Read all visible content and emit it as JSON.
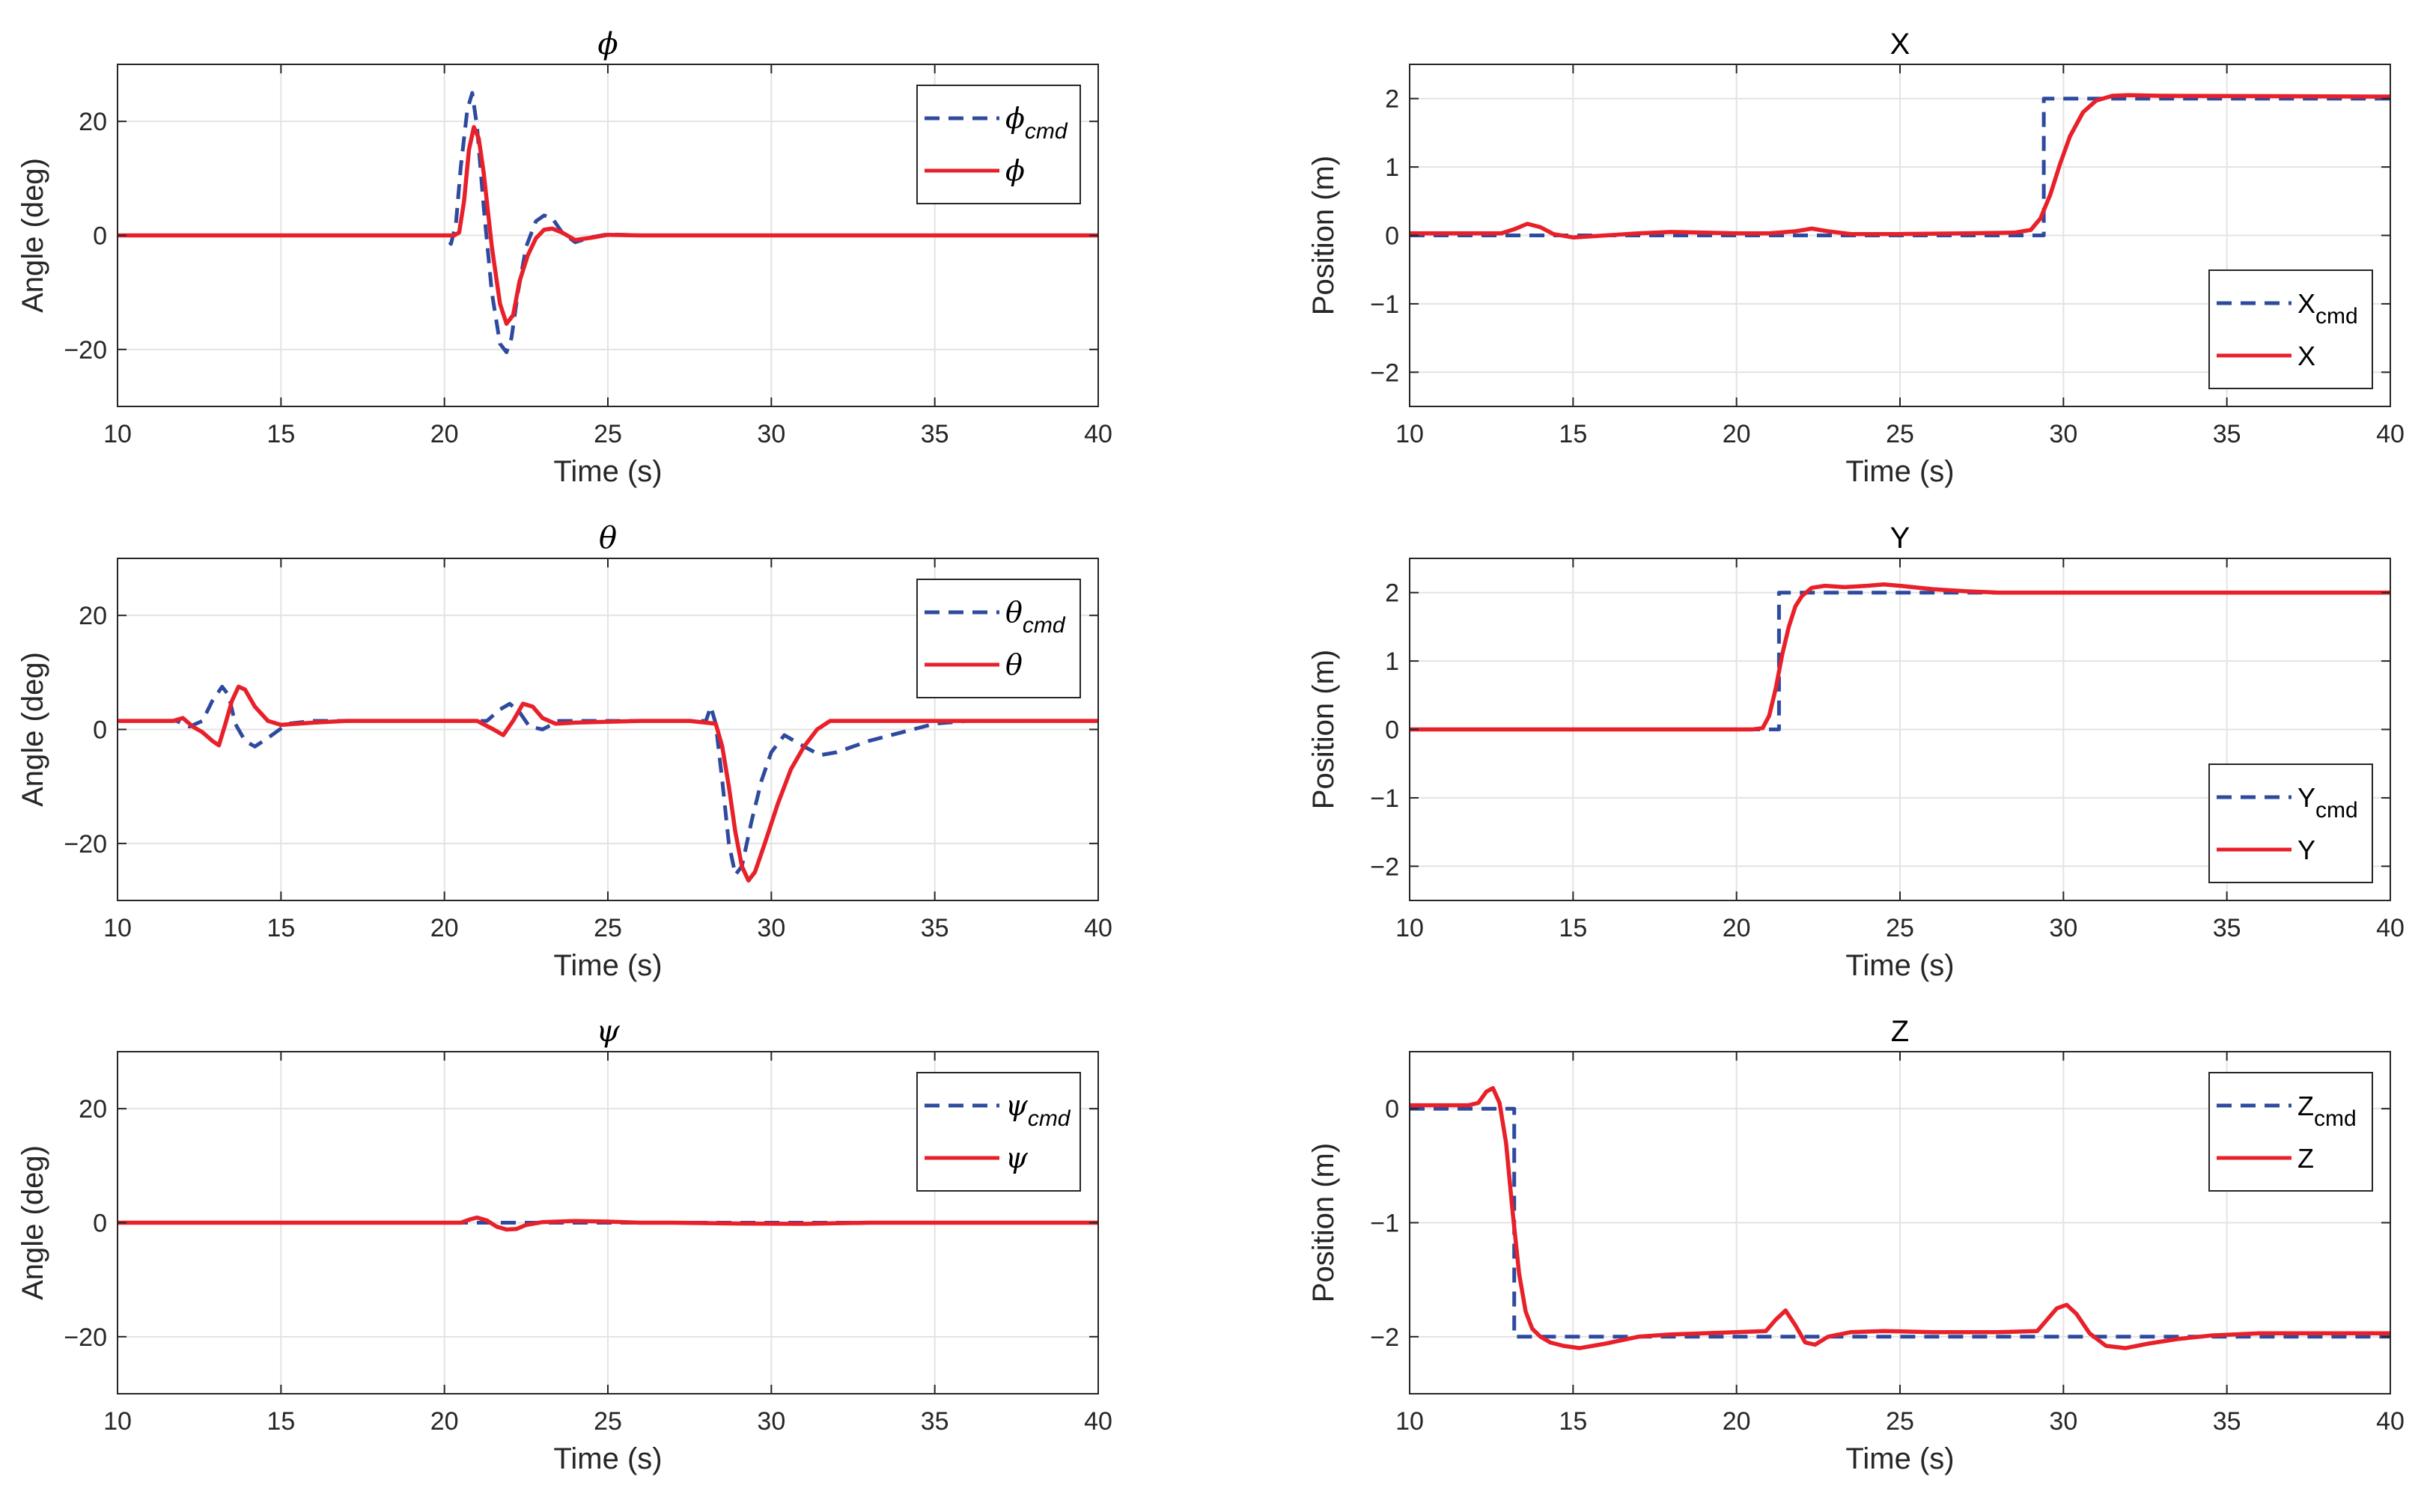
{
  "colors": {
    "cmd": "#2E4A9E",
    "actual": "#E8202A",
    "grid": "#E3E3E3",
    "axis": "#262626"
  },
  "chart_data": [
    {
      "type": "line",
      "title": "ϕ",
      "title_greek": true,
      "xlabel": "Time (s)",
      "ylabel": "Angle (deg)",
      "xlim": [
        10,
        40
      ],
      "ylim": [
        -30,
        30
      ],
      "xticks": [
        10,
        15,
        20,
        25,
        30,
        35,
        40
      ],
      "yticks": [
        -20,
        0,
        20
      ],
      "legend_location": "top-right",
      "series": [
        {
          "name": "ϕcmd",
          "base": "ϕ",
          "sub": "cmd",
          "style": "dashed",
          "x": [
            10,
            20.0,
            20.2,
            20.35,
            20.5,
            20.7,
            20.85,
            21.0,
            21.2,
            21.45,
            21.7,
            21.9,
            22.05,
            22.25,
            22.5,
            22.8,
            23.05,
            23.3,
            23.6,
            24.0,
            24.5,
            25.0,
            26.0,
            30.0,
            40
          ],
          "y": [
            0,
            0,
            -1.5,
            2,
            12,
            22,
            25,
            19,
            5,
            -10,
            -19,
            -20.5,
            -18,
            -10,
            -2,
            2.5,
            3.5,
            3,
            0.5,
            -1.2,
            -0.3,
            0.2,
            0,
            0,
            0
          ]
        },
        {
          "name": "ϕ",
          "base": "ϕ",
          "sub": "",
          "style": "solid",
          "x": [
            10,
            20.3,
            20.45,
            20.6,
            20.75,
            20.9,
            21.05,
            21.2,
            21.45,
            21.7,
            21.9,
            22.1,
            22.3,
            22.55,
            22.8,
            23.05,
            23.3,
            23.6,
            24.0,
            24.5,
            25.0,
            26.0,
            30.0,
            40
          ],
          "y": [
            0,
            0,
            0.5,
            6,
            15,
            19,
            17,
            11,
            -2,
            -12,
            -15.5,
            -14,
            -8,
            -3.5,
            -0.5,
            1,
            1.2,
            0.5,
            -0.8,
            -0.4,
            0.1,
            0,
            0,
            0
          ]
        }
      ]
    },
    {
      "type": "line",
      "title": "X",
      "title_greek": false,
      "xlabel": "Time (s)",
      "ylabel": "Position (m)",
      "xlim": [
        10,
        40
      ],
      "ylim": [
        -2.5,
        2.5
      ],
      "xticks": [
        10,
        15,
        20,
        25,
        30,
        35,
        40
      ],
      "yticks": [
        -2,
        -1,
        0,
        1,
        2
      ],
      "legend_location": "bottom-right",
      "series": [
        {
          "name": "Xcmd",
          "base": "X",
          "sub": "cmd",
          "style": "dashed",
          "x": [
            10,
            29.4,
            29.4,
            40
          ],
          "y": [
            0,
            0,
            2,
            2
          ]
        },
        {
          "name": "X",
          "base": "X",
          "sub": "",
          "style": "solid",
          "x": [
            10,
            12.8,
            13.2,
            13.6,
            14.0,
            14.4,
            15.0,
            16.0,
            17.0,
            18.0,
            19.0,
            20.0,
            21.0,
            21.8,
            22.3,
            22.8,
            23.5,
            25.0,
            27.0,
            28.5,
            29.0,
            29.3,
            29.6,
            29.9,
            30.2,
            30.6,
            31.0,
            31.5,
            32.0,
            33.0,
            40
          ],
          "y": [
            0.03,
            0.03,
            0.09,
            0.17,
            0.12,
            0.02,
            -0.03,
            0.0,
            0.03,
            0.05,
            0.04,
            0.03,
            0.03,
            0.06,
            0.1,
            0.06,
            0.02,
            0.02,
            0.03,
            0.04,
            0.08,
            0.25,
            0.6,
            1.05,
            1.45,
            1.8,
            1.97,
            2.04,
            2.05,
            2.04,
            2.03
          ]
        }
      ]
    },
    {
      "type": "line",
      "title": "θ",
      "title_greek": true,
      "xlabel": "Time (s)",
      "ylabel": "Angle (deg)",
      "xlim": [
        10,
        40
      ],
      "ylim": [
        -30,
        30
      ],
      "xticks": [
        10,
        15,
        20,
        25,
        30,
        35,
        40
      ],
      "yticks": [
        -20,
        0,
        20
      ],
      "legend_location": "top-right",
      "series": [
        {
          "name": "θcmd",
          "base": "θ",
          "sub": "cmd",
          "style": "dashed",
          "x": [
            10,
            11.8,
            12.2,
            12.6,
            12.9,
            13.2,
            13.4,
            13.6,
            13.9,
            14.2,
            14.6,
            15.2,
            16.0,
            20.0,
            21.3,
            21.7,
            22.0,
            22.3,
            22.6,
            23.0,
            23.5,
            24.0,
            26.0,
            28.0,
            28.15,
            28.3,
            28.5,
            28.7,
            28.9,
            29.1,
            29.4,
            29.7,
            30.0,
            30.4,
            31.0,
            31.5,
            32.0,
            33.0,
            34.0,
            35.0,
            36.0,
            40
          ],
          "y": [
            1.5,
            1.5,
            0.5,
            1.5,
            5,
            7.5,
            6,
            1,
            -2,
            -3,
            -1.5,
            1,
            1.5,
            1.5,
            1.5,
            3.5,
            4.5,
            3,
            0.5,
            0,
            1.5,
            1.5,
            1.5,
            1.5,
            4,
            1,
            -9,
            -20,
            -25.5,
            -24,
            -16,
            -9,
            -4,
            -1,
            -3,
            -4.5,
            -4,
            -2,
            -0.5,
            1,
            1.5,
            1.5
          ]
        },
        {
          "name": "θ",
          "base": "θ",
          "sub": "",
          "style": "solid",
          "x": [
            10,
            11.7,
            12.0,
            12.3,
            12.6,
            12.9,
            13.1,
            13.3,
            13.5,
            13.7,
            13.9,
            14.2,
            14.6,
            15.0,
            15.5,
            16.0,
            17.0,
            20.0,
            21.0,
            21.5,
            21.8,
            22.1,
            22.4,
            22.7,
            23.0,
            23.4,
            24.0,
            26.0,
            27.5,
            28.3,
            28.5,
            28.7,
            28.9,
            29.1,
            29.3,
            29.5,
            29.8,
            30.2,
            30.6,
            31.0,
            31.4,
            31.8,
            32.5,
            34.0,
            40
          ],
          "y": [
            1.5,
            1.5,
            2,
            0.5,
            -0.5,
            -2,
            -2.8,
            1,
            5,
            7.5,
            7,
            4,
            1.5,
            0.8,
            1,
            1.2,
            1.5,
            1.5,
            1.5,
            0,
            -1,
            1.5,
            4.5,
            4,
            2,
            1,
            1.2,
            1.5,
            1.5,
            1,
            -3,
            -10,
            -18,
            -24,
            -26.5,
            -25,
            -20,
            -13,
            -7,
            -3,
            0,
            1.5,
            1.5,
            1.5,
            1.5
          ]
        }
      ]
    },
    {
      "type": "line",
      "title": "Y",
      "title_greek": false,
      "xlabel": "Time (s)",
      "ylabel": "Position (m)",
      "xlim": [
        10,
        40
      ],
      "ylim": [
        -2.5,
        2.5
      ],
      "xticks": [
        10,
        15,
        20,
        25,
        30,
        35,
        40
      ],
      "yticks": [
        -2,
        -1,
        0,
        1,
        2
      ],
      "legend_location": "bottom-right",
      "series": [
        {
          "name": "Ycmd",
          "base": "Y",
          "sub": "cmd",
          "style": "dashed",
          "x": [
            10,
            21.3,
            21.3,
            40
          ],
          "y": [
            0,
            0,
            2,
            2
          ]
        },
        {
          "name": "Y",
          "base": "Y",
          "sub": "",
          "style": "solid",
          "x": [
            10,
            20.5,
            20.8,
            21.0,
            21.2,
            21.4,
            21.6,
            21.8,
            22.0,
            22.3,
            22.7,
            23.3,
            24.0,
            24.5,
            25.0,
            26.0,
            27.0,
            28.0,
            29.0,
            30.0,
            40
          ],
          "y": [
            0,
            0,
            0.02,
            0.2,
            0.6,
            1.1,
            1.5,
            1.8,
            1.95,
            2.07,
            2.1,
            2.08,
            2.1,
            2.12,
            2.1,
            2.05,
            2.02,
            2.0,
            2.0,
            2.0,
            2.0
          ]
        }
      ]
    },
    {
      "type": "line",
      "title": "ψ",
      "title_greek": true,
      "xlabel": "Time (s)",
      "ylabel": "Angle (deg)",
      "xlim": [
        10,
        40
      ],
      "ylim": [
        -30,
        30
      ],
      "xticks": [
        10,
        15,
        20,
        25,
        30,
        35,
        40
      ],
      "yticks": [
        -20,
        0,
        20
      ],
      "legend_location": "top-right",
      "series": [
        {
          "name": "ψcmd",
          "base": "ψ",
          "sub": "cmd",
          "style": "dashed",
          "x": [
            10,
            40
          ],
          "y": [
            0,
            0
          ]
        },
        {
          "name": "ψ",
          "base": "ψ",
          "sub": "",
          "style": "solid",
          "x": [
            10,
            20.5,
            20.8,
            21.0,
            21.3,
            21.6,
            21.9,
            22.2,
            22.5,
            23.0,
            24.0,
            25.0,
            26.0,
            27.0,
            29.0,
            31.0,
            33.0,
            40
          ],
          "y": [
            0,
            0,
            0.6,
            0.9,
            0.4,
            -0.7,
            -1.2,
            -1.1,
            -0.4,
            0.1,
            0.3,
            0.2,
            0,
            0,
            -0.15,
            -0.2,
            0,
            0
          ]
        }
      ]
    },
    {
      "type": "line",
      "title": "Z",
      "title_greek": false,
      "xlabel": "Time (s)",
      "ylabel": "Position (m)",
      "xlim": [
        10,
        40
      ],
      "ylim": [
        -2.5,
        0.5
      ],
      "xticks": [
        10,
        15,
        20,
        25,
        30,
        35,
        40
      ],
      "yticks": [
        -2,
        -1,
        0
      ],
      "legend_location": "top-right",
      "series": [
        {
          "name": "Zcmd",
          "base": "Z",
          "sub": "cmd",
          "style": "dashed",
          "x": [
            10,
            13.2,
            13.2,
            40
          ],
          "y": [
            0,
            0,
            -2,
            -2
          ]
        },
        {
          "name": "Z",
          "base": "Z",
          "sub": "",
          "style": "solid",
          "x": [
            10,
            11.8,
            12.1,
            12.35,
            12.55,
            12.75,
            12.95,
            13.15,
            13.35,
            13.55,
            13.75,
            14.0,
            14.3,
            14.7,
            15.2,
            16.0,
            17.0,
            18.0,
            19.0,
            20.0,
            20.9,
            21.2,
            21.5,
            21.8,
            22.1,
            22.4,
            22.8,
            23.5,
            24.5,
            26.0,
            28.0,
            29.2,
            29.5,
            29.8,
            30.1,
            30.4,
            30.8,
            31.3,
            31.9,
            32.6,
            33.5,
            34.5,
            36.0,
            38.0,
            40
          ],
          "y": [
            0.03,
            0.03,
            0.05,
            0.15,
            0.18,
            0.05,
            -0.3,
            -0.9,
            -1.45,
            -1.78,
            -1.93,
            -2.0,
            -2.05,
            -2.08,
            -2.1,
            -2.06,
            -2.0,
            -1.98,
            -1.97,
            -1.96,
            -1.95,
            -1.85,
            -1.77,
            -1.9,
            -2.05,
            -2.07,
            -2.0,
            -1.96,
            -1.95,
            -1.96,
            -1.96,
            -1.95,
            -1.85,
            -1.75,
            -1.72,
            -1.8,
            -1.97,
            -2.08,
            -2.1,
            -2.06,
            -2.02,
            -1.99,
            -1.97,
            -1.97,
            -1.97
          ]
        }
      ]
    }
  ]
}
